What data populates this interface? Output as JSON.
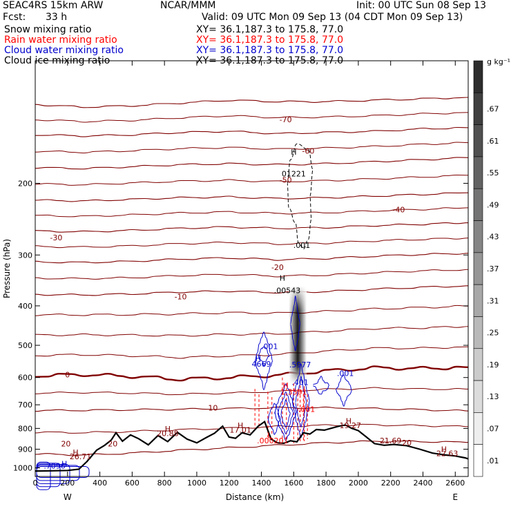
{
  "header": {
    "model": "SEAC4RS 15km ARW",
    "fcst_label": "Fcst:",
    "fcst_value": "33 h",
    "org": "NCAR/MMM",
    "init": "Init: 00 UTC Sun 08 Sep 13",
    "valid": "Valid: 09 UTC Mon 09 Sep 13 (04 CDT Mon 09 Sep 13)",
    "fields": [
      {
        "name": "Snow mixing ratio",
        "xy": "XY=  36.1,187.3 to 175.8, 77.0",
        "color": "#000000"
      },
      {
        "name": "Rain water mixing ratio",
        "xy": "XY=  36.1,187.3 to 175.8, 77.0",
        "color": "#ff0000"
      },
      {
        "name": "Cloud water mixing ratio",
        "xy": "XY=  36.1,187.3 to 175.8, 77.0",
        "color": "#0000cc"
      },
      {
        "name": "Cloud ice mixing ratio",
        "xy": "XY=  36.1,187.3 to 175.8, 77.0",
        "color": "#000000"
      }
    ]
  },
  "chart_data": {
    "type": "cross-section contour",
    "xlabel": "Distance (km)",
    "ylabel": "Pressure (hPa)",
    "x_ticks": [
      0,
      200,
      400,
      600,
      800,
      1000,
      1200,
      1400,
      1600,
      1800,
      2000,
      2200,
      2400,
      2600
    ],
    "y_ticks": [
      200,
      300,
      400,
      500,
      600,
      700,
      800,
      900,
      1000
    ],
    "xlim": [
      0,
      2680
    ],
    "ylim": [
      100,
      1050
    ],
    "y_scale": "log",
    "end_labels": [
      "W",
      "E"
    ],
    "colorbar": {
      "unit": "g kg⁻¹",
      "levels": [
        ".01",
        ".07",
        ".13",
        ".19",
        ".25",
        ".31",
        ".37",
        ".43",
        ".49",
        ".55",
        ".61",
        ".67"
      ]
    },
    "temperature_isotherms": [
      {
        "label": "-70",
        "y": [
          128,
          130,
          129,
          127,
          125,
          126,
          126,
          125,
          124,
          123
        ]
      },
      {
        "label": "-60",
        "y": [
          152,
          153,
          152,
          150,
          149,
          151,
          150,
          149,
          147,
          146
        ]
      },
      {
        "label": "-50",
        "y": [
          183,
          184,
          182,
          180,
          179,
          180,
          179,
          177,
          175,
          173
        ]
      },
      {
        "label": "-40",
        "y": [
          220,
          221,
          219,
          217,
          216,
          218,
          217,
          215,
          213,
          211
        ]
      },
      {
        "label": "-30",
        "y": [
          262,
          263,
          261,
          258,
          256,
          258,
          257,
          254,
          252,
          250
        ]
      },
      {
        "label": "-20",
        "y": [
          312,
          313,
          311,
          307,
          305,
          308,
          306,
          302,
          299,
          297
        ]
      },
      {
        "label": "-10",
        "y": [
          375,
          376,
          374,
          370,
          368,
          371,
          369,
          364,
          360,
          357
        ]
      },
      {
        "label": "0",
        "y": [
          594,
          590,
          596,
          606,
          600,
          592,
          578,
          568,
          570,
          566
        ]
      },
      {
        "label": "10",
        "y": [
          723,
          722,
          720,
          718,
          715,
          712,
          712,
          715,
          720,
          725
        ]
      },
      {
        "label": "20",
        "y": [
          925,
          930,
          920,
          905,
          893,
          880,
          868,
          860,
          862,
          866
        ]
      }
    ],
    "isotherm_x": [
      0,
      300,
      600,
      900,
      1200,
      1500,
      1800,
      2100,
      2400,
      2680
    ],
    "terrain": {
      "x": [
        0,
        100,
        200,
        270,
        320,
        380,
        430,
        470,
        500,
        540,
        590,
        640,
        700,
        760,
        820,
        880,
        940,
        1000,
        1060,
        1110,
        1160,
        1200,
        1240,
        1280,
        1330,
        1380,
        1420,
        1460,
        1500,
        1540,
        1580,
        1620,
        1660,
        1700,
        1740,
        1790,
        1840,
        1880,
        1920,
        1960,
        2000,
        2050,
        2100,
        2160,
        2220,
        2300,
        2380,
        2460,
        2540,
        2600,
        2660,
        2680
      ],
      "p": [
        1018,
        1017,
        1015,
        1008,
        965,
        905,
        880,
        855,
        820,
        860,
        830,
        848,
        878,
        833,
        862,
        818,
        850,
        868,
        842,
        822,
        790,
        840,
        846,
        820,
        830,
        790,
        770,
        850,
        868,
        870,
        858,
        863,
        820,
        826,
        805,
        808,
        798,
        790,
        785,
        800,
        810,
        840,
        872,
        880,
        876,
        882,
        900,
        920,
        930,
        935,
        945,
        950
      ]
    },
    "labels": [
      {
        "text": "-70",
        "x": 1550,
        "p": 140,
        "color": "#800000"
      },
      {
        "text": "-60",
        "x": 1690,
        "p": 167,
        "color": "#800000"
      },
      {
        "text": "-50",
        "x": 1550,
        "p": 197,
        "color": "#800000"
      },
      {
        "text": "-40",
        "x": 2250,
        "p": 233,
        "color": "#800000"
      },
      {
        "text": "-30",
        "x": 130,
        "p": 273,
        "color": "#800000"
      },
      {
        "text": "-20",
        "x": 1500,
        "p": 323,
        "color": "#800000"
      },
      {
        "text": "-10",
        "x": 900,
        "p": 381,
        "color": "#800000"
      },
      {
        "text": "0",
        "x": 200,
        "p": 592,
        "color": "#800000"
      },
      {
        "text": "10",
        "x": 1100,
        "p": 714,
        "color": "#800000"
      },
      {
        "text": "20",
        "x": 2300,
        "p": 870,
        "color": "#800000"
      },
      {
        "text": "H",
        "x": 1600,
        "p": 168,
        "color": "#000000"
      },
      {
        "text": "01221",
        "x": 1600,
        "p": 190,
        "color": "#000000"
      },
      {
        "text": ".001",
        "x": 1650,
        "p": 285,
        "color": "#000000"
      },
      {
        "text": "H",
        "x": 1530,
        "p": 343,
        "color": "#000000"
      },
      {
        "text": ".00543",
        "x": 1560,
        "p": 368,
        "color": "#000000"
      },
      {
        "text": ".001",
        "x": 1450,
        "p": 505,
        "color": "#0000cc"
      },
      {
        "text": ".5977",
        "x": 1640,
        "p": 560,
        "color": "#0000cc"
      },
      {
        "text": ".001",
        "x": 1920,
        "p": 588,
        "color": "#0000cc"
      },
      {
        "text": "H",
        "x": 1380,
        "p": 540,
        "color": "#0000cc"
      },
      {
        "text": "4669",
        "x": 1400,
        "p": 558,
        "color": "#0000cc"
      },
      {
        "text": ".401",
        "x": 1640,
        "p": 618,
        "color": "#0000cc"
      },
      {
        "text": "H",
        "x": 1550,
        "p": 630,
        "color": "#ff0000"
      },
      {
        "text": "1.3501",
        "x": 1600,
        "p": 653,
        "color": "#ff0000"
      },
      {
        "text": ".001",
        "x": 1680,
        "p": 720,
        "color": "#ff0000"
      },
      {
        "text": "L",
        "x": 1450,
        "p": 835,
        "color": "#ff0000"
      },
      {
        "text": ".000201",
        "x": 1470,
        "p": 860,
        "color": "#ff0000"
      },
      {
        "text": "H",
        "x": 1270,
        "p": 790,
        "color": "#800000"
      },
      {
        "text": "17.01",
        "x": 1270,
        "p": 810,
        "color": "#800000"
      },
      {
        "text": "H",
        "x": 820,
        "p": 805,
        "color": "#800000"
      },
      {
        "text": "20.88",
        "x": 820,
        "p": 825,
        "color": "#800000"
      },
      {
        "text": "H",
        "x": 1940,
        "p": 770,
        "color": "#800000"
      },
      {
        "text": "19.27",
        "x": 1950,
        "p": 790,
        "color": "#800000"
      },
      {
        "text": "21.69",
        "x": 2200,
        "p": 860,
        "color": "#800000"
      },
      {
        "text": "H",
        "x": 2530,
        "p": 904,
        "color": "#800000"
      },
      {
        "text": "22.63",
        "x": 2550,
        "p": 925,
        "color": "#800000"
      },
      {
        "text": "H",
        "x": 250,
        "p": 920,
        "color": "#800000"
      },
      {
        "text": "26.71",
        "x": 280,
        "p": 942,
        "color": "#800000"
      },
      {
        "text": "H",
        "x": 180,
        "p": 980,
        "color": "#0000cc"
      },
      {
        "text": ".7096",
        "x": 120,
        "p": 992,
        "color": "#0000cc"
      },
      {
        "text": "20",
        "x": 190,
        "p": 875,
        "color": "#800000"
      },
      {
        "text": "20",
        "x": 480,
        "p": 875,
        "color": "#800000"
      }
    ]
  }
}
